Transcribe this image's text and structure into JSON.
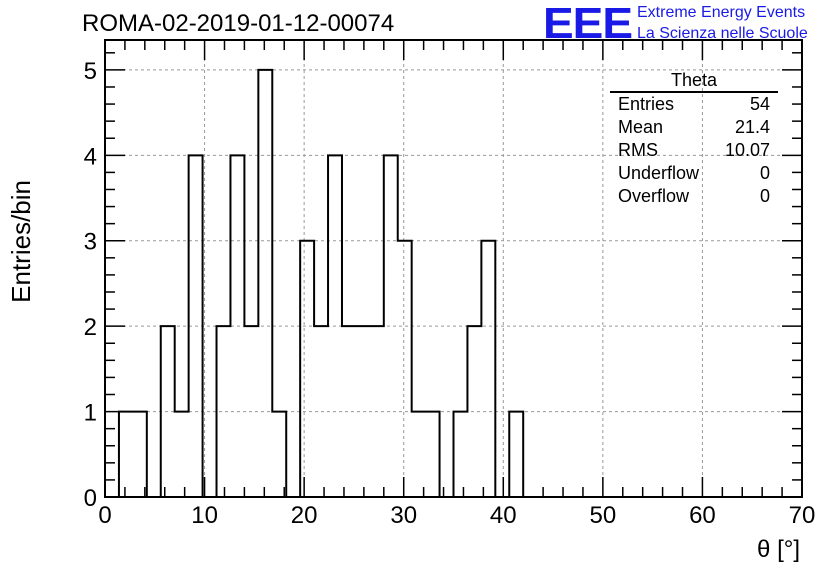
{
  "title": "ROMA-02-2019-01-12-00074",
  "logo": {
    "mark": "EEE",
    "line1": "Extreme Energy Events",
    "line2": "La Scienza nelle Scuole",
    "color": "#1a1ae6"
  },
  "stats_box": {
    "title": "Theta",
    "rows": [
      {
        "label": "Entries",
        "value": "54"
      },
      {
        "label": "Mean",
        "value": "21.4"
      },
      {
        "label": "RMS",
        "value": "10.07"
      },
      {
        "label": "Underflow",
        "value": "0"
      },
      {
        "label": "Overflow",
        "value": "0"
      }
    ]
  },
  "chart_data": {
    "type": "bar",
    "style": "step-histogram",
    "title": "ROMA-02-2019-01-12-00074",
    "xlabel": "θ [°]",
    "ylabel": "Entries/bin",
    "xlim": [
      0,
      70
    ],
    "ylim": [
      0,
      5.35
    ],
    "xticks": [
      "0",
      "10",
      "20",
      "30",
      "40",
      "50",
      "60",
      "70"
    ],
    "yticks": [
      "0",
      "1",
      "2",
      "3",
      "4",
      "5"
    ],
    "grid": true,
    "line_color": "#000000",
    "bin_width": 1.4,
    "bin_start": 1.4,
    "values": [
      1,
      1,
      0,
      2,
      1,
      4,
      0,
      2,
      4,
      2,
      5,
      1,
      0,
      3,
      2,
      4,
      2,
      2,
      2,
      4,
      3,
      1,
      1,
      0,
      1,
      2,
      3,
      0,
      1
    ]
  }
}
